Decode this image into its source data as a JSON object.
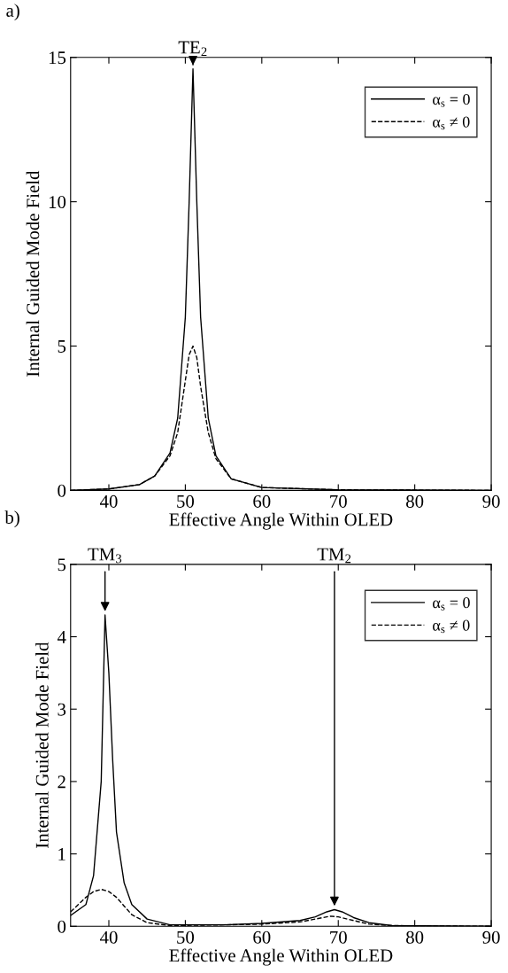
{
  "chart_data": [
    {
      "type": "line",
      "xlabel": "Effective Angle Within OLED",
      "ylabel": "Internal Guided Mode Field",
      "xlim": [
        35,
        90
      ],
      "xticks": [
        40,
        50,
        60,
        70,
        80,
        90
      ],
      "ylim": [
        0,
        15
      ],
      "yticks": [
        0,
        5,
        10,
        15
      ],
      "legend": "top right",
      "grid": false,
      "annotations": [
        "a)",
        {
          "text": "TE$_{2}$",
          "x": 51,
          "y": 14.6
        }
      ],
      "series": [
        {
          "name": "α$_{s}$ = 0",
          "color": "#000000",
          "line_style": "solid",
          "x": [
            35,
            40,
            44,
            46,
            48,
            49,
            50,
            50.5,
            51,
            51.5,
            52,
            53,
            54,
            56,
            60,
            70,
            90
          ],
          "values": [
            0,
            0.05,
            0.2,
            0.5,
            1.3,
            2.5,
            6,
            10,
            14.6,
            10,
            6,
            2.5,
            1.2,
            0.4,
            0.1,
            0.02,
            0
          ]
        },
        {
          "name": "α$_{s}$ ≠ 0",
          "color": "#000000",
          "line_style": "dashed",
          "x": [
            35,
            40,
            44,
            46,
            48,
            49,
            50,
            50.5,
            51,
            51.5,
            52,
            53,
            54,
            56,
            60,
            70,
            90
          ],
          "values": [
            0,
            0.05,
            0.2,
            0.5,
            1.2,
            2.0,
            3.8,
            4.7,
            5.0,
            4.6,
            3.6,
            2.0,
            1.1,
            0.4,
            0.1,
            0.02,
            0
          ]
        }
      ]
    },
    {
      "type": "line",
      "xlabel": "Effective Angle Within OLED",
      "ylabel": "Internal Guided Mode Field",
      "xlim": [
        35,
        90
      ],
      "xticks": [
        40,
        50,
        60,
        70,
        80,
        90
      ],
      "ylim": [
        0,
        5
      ],
      "yticks": [
        0,
        1,
        2,
        3,
        4,
        5
      ],
      "legend": "top right",
      "grid": false,
      "annotations": [
        "b)",
        {
          "text": "TM$_{3}$",
          "x": 39.5,
          "y": 4.3
        },
        {
          "text": "TM$_{2}$",
          "x": 69.5,
          "y": 0.23
        }
      ],
      "series": [
        {
          "name": "α$_{s}$ = 0",
          "color": "#000000",
          "line_style": "solid",
          "x": [
            35,
            37,
            38,
            39,
            39.5,
            40,
            40.5,
            41,
            42,
            43,
            45,
            48,
            55,
            60,
            65,
            67,
            68.5,
            69.5,
            70.5,
            72,
            74,
            77,
            90
          ],
          "values": [
            0.15,
            0.3,
            0.7,
            2.0,
            4.3,
            3.5,
            2.3,
            1.3,
            0.6,
            0.3,
            0.1,
            0.02,
            0.02,
            0.04,
            0.08,
            0.13,
            0.2,
            0.23,
            0.2,
            0.12,
            0.05,
            0.01,
            0
          ]
        },
        {
          "name": "α$_{s}$ ≠ 0",
          "color": "#000000",
          "line_style": "dashed",
          "x": [
            35,
            36,
            37,
            38,
            39,
            40,
            41,
            42,
            43,
            45,
            48,
            55,
            60,
            65,
            67,
            69,
            70,
            72,
            74,
            77,
            90
          ],
          "values": [
            0.2,
            0.3,
            0.4,
            0.48,
            0.51,
            0.48,
            0.4,
            0.28,
            0.16,
            0.05,
            0.01,
            0.02,
            0.03,
            0.06,
            0.1,
            0.14,
            0.13,
            0.08,
            0.03,
            0.01,
            0
          ]
        }
      ]
    }
  ]
}
